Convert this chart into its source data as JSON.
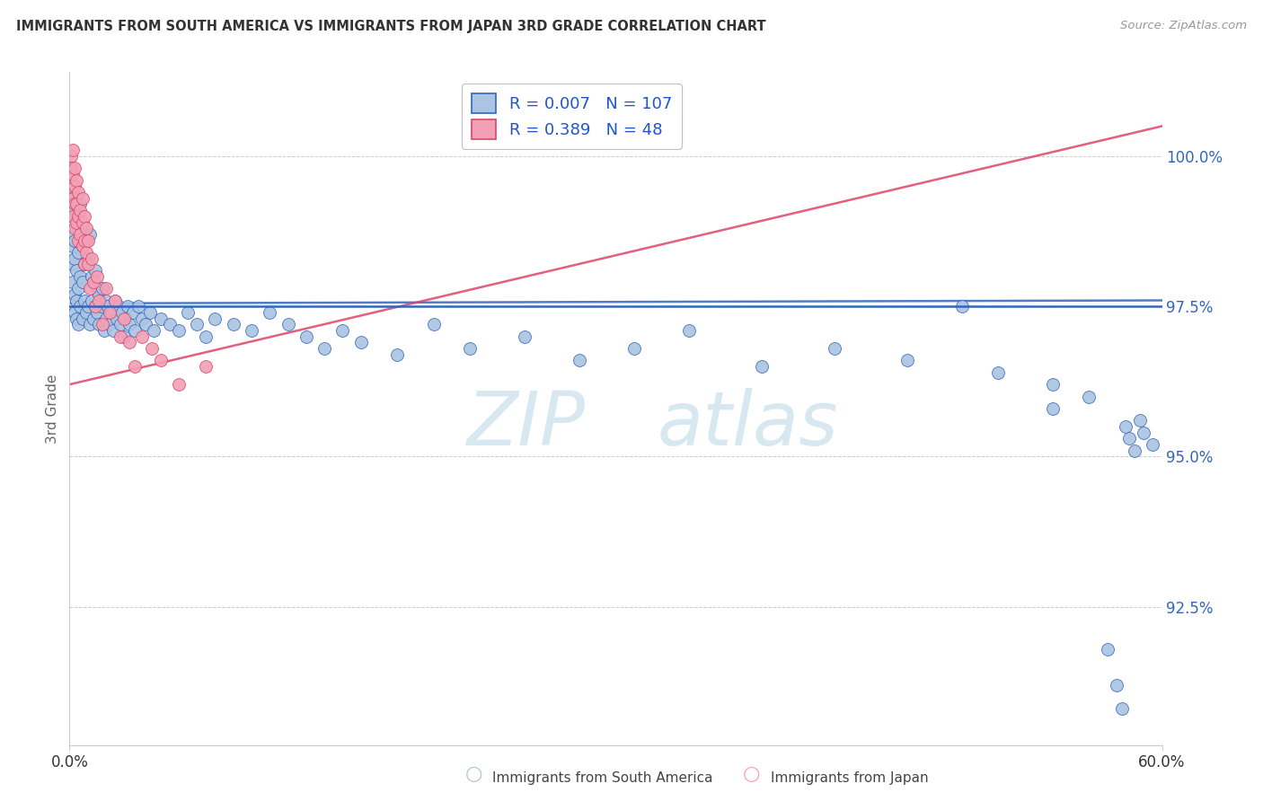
{
  "title": "IMMIGRANTS FROM SOUTH AMERICA VS IMMIGRANTS FROM JAPAN 3RD GRADE CORRELATION CHART",
  "source": "Source: ZipAtlas.com",
  "ylabel": "3rd Grade",
  "y_tick_labels": [
    "92.5%",
    "95.0%",
    "97.5%",
    "100.0%"
  ],
  "y_tick_values": [
    92.5,
    95.0,
    97.5,
    100.0
  ],
  "legend_label_blue": "Immigrants from South America",
  "legend_label_pink": "Immigrants from Japan",
  "r_blue": "0.007",
  "n_blue": "107",
  "r_pink": "0.389",
  "n_pink": "48",
  "color_blue": "#aac4e2",
  "color_pink": "#f2a0b5",
  "color_trendline_blue": "#3366bb",
  "color_trendline_pink": "#dd4466",
  "title_color": "#333333",
  "source_color": "#999999",
  "legend_text_color": "#2255cc",
  "hline_y": 97.5,
  "hline_color": "#3366bb",
  "xlim_min": 0.0,
  "xlim_max": 0.6,
  "ylim_min": 90.2,
  "ylim_max": 101.4,
  "blue_x": [
    0.001,
    0.001,
    0.002,
    0.002,
    0.002,
    0.002,
    0.003,
    0.003,
    0.003,
    0.003,
    0.003,
    0.004,
    0.004,
    0.004,
    0.004,
    0.005,
    0.005,
    0.005,
    0.005,
    0.006,
    0.006,
    0.006,
    0.007,
    0.007,
    0.007,
    0.008,
    0.008,
    0.009,
    0.009,
    0.01,
    0.01,
    0.011,
    0.011,
    0.012,
    0.012,
    0.013,
    0.013,
    0.014,
    0.014,
    0.015,
    0.015,
    0.016,
    0.016,
    0.017,
    0.018,
    0.019,
    0.02,
    0.02,
    0.021,
    0.022,
    0.023,
    0.024,
    0.025,
    0.026,
    0.027,
    0.028,
    0.029,
    0.03,
    0.031,
    0.032,
    0.033,
    0.035,
    0.036,
    0.038,
    0.04,
    0.042,
    0.044,
    0.046,
    0.05,
    0.055,
    0.06,
    0.065,
    0.07,
    0.075,
    0.08,
    0.09,
    0.1,
    0.11,
    0.12,
    0.13,
    0.14,
    0.15,
    0.16,
    0.18,
    0.2,
    0.22,
    0.25,
    0.28,
    0.31,
    0.34,
    0.38,
    0.42,
    0.46,
    0.49,
    0.51,
    0.54,
    0.54,
    0.56,
    0.57,
    0.575,
    0.578,
    0.58,
    0.582,
    0.585,
    0.588,
    0.59,
    0.595
  ],
  "blue_y": [
    99.1,
    98.7,
    99.4,
    98.5,
    98.2,
    97.9,
    99.0,
    98.6,
    98.3,
    97.7,
    97.4,
    98.8,
    98.1,
    97.6,
    97.3,
    98.9,
    98.4,
    97.8,
    97.2,
    99.2,
    98.0,
    97.5,
    98.5,
    97.9,
    97.3,
    98.2,
    97.6,
    98.6,
    97.4,
    98.3,
    97.5,
    98.7,
    97.2,
    98.0,
    97.6,
    97.9,
    97.3,
    98.1,
    97.5,
    97.8,
    97.4,
    97.7,
    97.2,
    97.5,
    97.8,
    97.1,
    97.6,
    97.3,
    97.5,
    97.2,
    97.4,
    97.1,
    97.6,
    97.3,
    97.5,
    97.2,
    97.4,
    97.0,
    97.3,
    97.5,
    97.2,
    97.4,
    97.1,
    97.5,
    97.3,
    97.2,
    97.4,
    97.1,
    97.3,
    97.2,
    97.1,
    97.4,
    97.2,
    97.0,
    97.3,
    97.2,
    97.1,
    97.4,
    97.2,
    97.0,
    96.8,
    97.1,
    96.9,
    96.7,
    97.2,
    96.8,
    97.0,
    96.6,
    96.8,
    97.1,
    96.5,
    96.8,
    96.6,
    97.5,
    96.4,
    95.8,
    96.2,
    96.0,
    91.8,
    91.2,
    90.8,
    95.5,
    95.3,
    95.1,
    95.6,
    95.4,
    95.2
  ],
  "pink_x": [
    0.001,
    0.001,
    0.001,
    0.002,
    0.002,
    0.002,
    0.002,
    0.003,
    0.003,
    0.003,
    0.003,
    0.004,
    0.004,
    0.004,
    0.005,
    0.005,
    0.005,
    0.006,
    0.006,
    0.007,
    0.007,
    0.007,
    0.008,
    0.008,
    0.008,
    0.009,
    0.009,
    0.01,
    0.01,
    0.011,
    0.012,
    0.013,
    0.014,
    0.015,
    0.016,
    0.018,
    0.02,
    0.022,
    0.025,
    0.028,
    0.03,
    0.033,
    0.036,
    0.04,
    0.045,
    0.05,
    0.06,
    0.075
  ],
  "pink_y": [
    100.0,
    99.8,
    99.5,
    100.1,
    99.7,
    99.3,
    99.0,
    99.8,
    99.5,
    99.2,
    98.8,
    99.6,
    99.2,
    98.9,
    99.4,
    99.0,
    98.6,
    99.1,
    98.7,
    99.3,
    98.9,
    98.5,
    99.0,
    98.6,
    98.2,
    98.8,
    98.4,
    98.6,
    98.2,
    97.8,
    98.3,
    97.9,
    97.5,
    98.0,
    97.6,
    97.2,
    97.8,
    97.4,
    97.6,
    97.0,
    97.3,
    96.9,
    96.5,
    97.0,
    96.8,
    96.6,
    96.2,
    96.5
  ],
  "pink_trendline_x": [
    0.0,
    0.6
  ],
  "pink_trendline_y": [
    96.2,
    100.5
  ],
  "blue_trendline_x": [
    0.0,
    0.6
  ],
  "blue_trendline_y": [
    97.55,
    97.6
  ]
}
